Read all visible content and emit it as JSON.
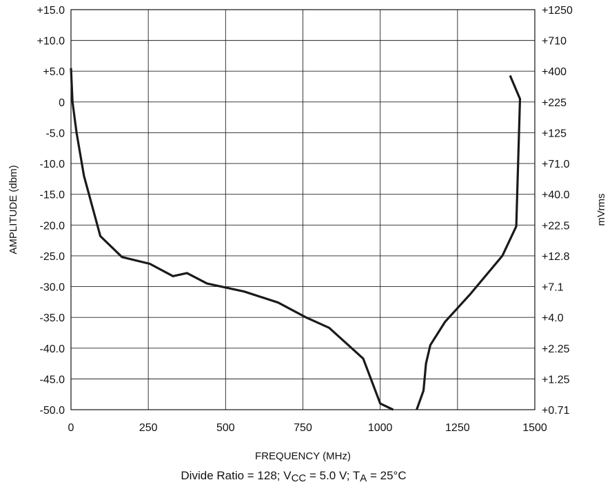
{
  "chart_data": {
    "type": "line",
    "title": "",
    "xlabel": "FREQUENCY (MHz)",
    "ylabel": "AMPLITUDE (dbm)",
    "y2label": "mVrms",
    "xlim": [
      0,
      1500
    ],
    "ylim": [
      -50,
      15
    ],
    "grid": true,
    "x_ticks": [
      "0",
      "250",
      "500",
      "750",
      "1000",
      "1250",
      "1500"
    ],
    "y_ticks": [
      "+15.0",
      "+10.0",
      "+5.0",
      "0",
      "-5.0",
      "-10.0",
      "-15.0",
      "-20.0",
      "-25.0",
      "-30.0",
      "-35.0",
      "-40.0",
      "-45.0",
      "-50.0"
    ],
    "y2_ticks": [
      "+1250",
      "+710",
      "+400",
      "+225",
      "+125",
      "+71.0",
      "+40.0",
      "+22.5",
      "+12.8",
      "+7.1",
      "+4.0",
      "+2.25",
      "+1.25",
      "+0.71"
    ],
    "series": [
      {
        "color": "#1a1a1a",
        "segments": [
          {
            "x": [
              0,
              5,
              18,
              42,
              95,
              165,
              255,
              330,
              375,
              440,
              560,
              670,
              760,
              835,
              945,
              1000,
              1042
            ],
            "y": [
              5.5,
              0,
              -5.0,
              -12.0,
              -21.8,
              -25.2,
              -26.3,
              -28.3,
              -27.8,
              -29.5,
              -30.8,
              -32.6,
              -35.0,
              -36.7,
              -41.7,
              -49.0,
              -50.0
            ]
          },
          {
            "x": [
              1118,
              1140,
              1148,
              1162,
              1210,
              1290,
              1395,
              1440,
              1452,
              1420
            ],
            "y": [
              -50.0,
              -46.9,
              -42.5,
              -39.5,
              -35.7,
              -31.3,
              -25.0,
              -20.2,
              0.5,
              4.3
            ]
          }
        ]
      }
    ]
  },
  "caption": {
    "prefix": "Divide Ratio = 128; V",
    "vcc_sub": "CC",
    "middle": " = 5.0 V; T",
    "ta_sub": "A",
    "suffix": " = 25°C"
  }
}
